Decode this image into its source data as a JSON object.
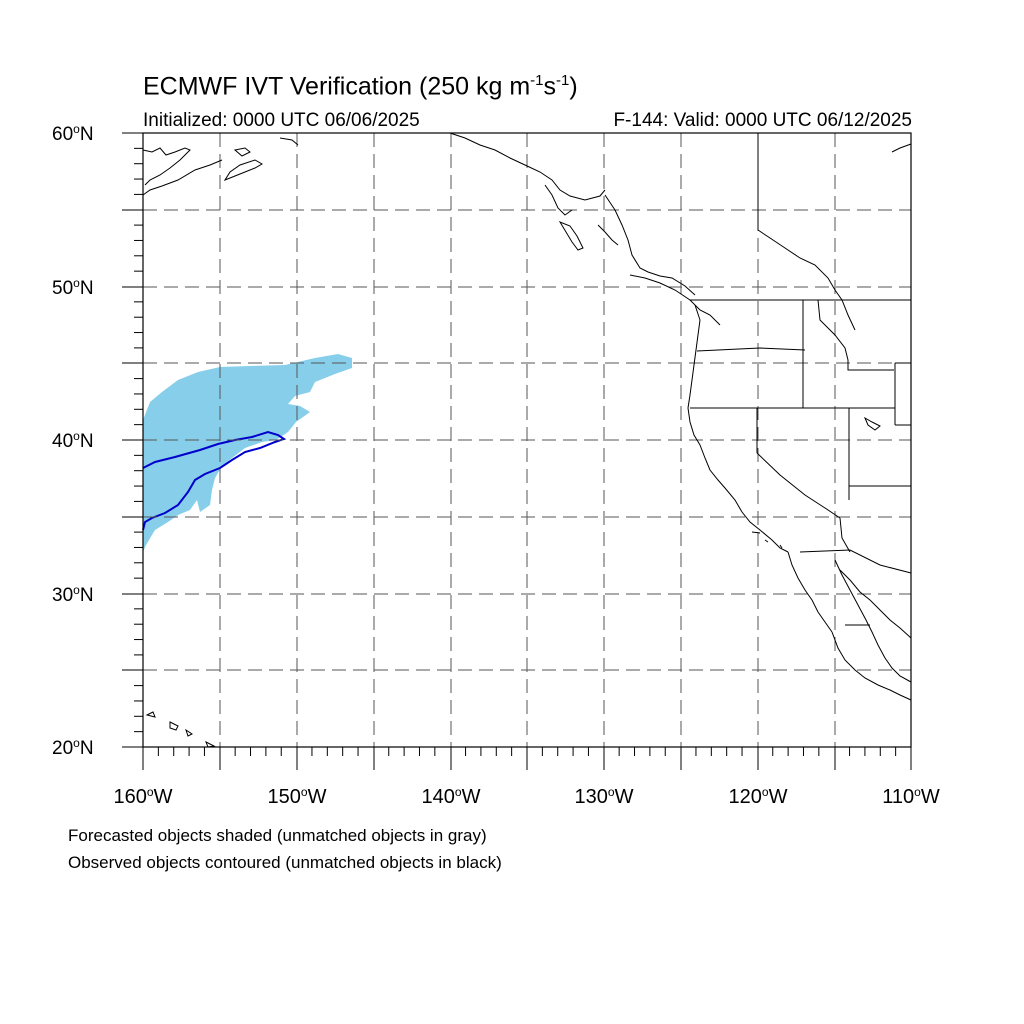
{
  "header": {
    "title_main": "ECMWF IVT Verification (250 kg m",
    "title_exp1": "-1",
    "title_mid": "s",
    "title_exp2": "-1",
    "title_end": ")",
    "initialized": "Initialized: 0000 UTC 06/06/2025",
    "valid": "F-144: Valid: 0000 UTC 06/12/2025"
  },
  "axes": {
    "lat_labels": [
      {
        "value": "60",
        "suffix": "N"
      },
      {
        "value": "50",
        "suffix": "N"
      },
      {
        "value": "40",
        "suffix": "N"
      },
      {
        "value": "30",
        "suffix": "N"
      },
      {
        "value": "20",
        "suffix": "N"
      }
    ],
    "lon_labels": [
      {
        "value": "160",
        "suffix": "W"
      },
      {
        "value": "150",
        "suffix": "W"
      },
      {
        "value": "140",
        "suffix": "W"
      },
      {
        "value": "130",
        "suffix": "W"
      },
      {
        "value": "120",
        "suffix": "W"
      },
      {
        "value": "110",
        "suffix": "W"
      }
    ],
    "lat_range": [
      20,
      60
    ],
    "lon_range": [
      -160,
      -110
    ],
    "grid": "dashed, every 5 degrees"
  },
  "legend": {
    "line1": "Forecasted objects shaded (unmatched objects in gray)",
    "line2": "Observed objects contoured (unmatched objects in black)"
  },
  "colors": {
    "forecast_fill": "#87CEEB",
    "observed_contour": "#0000CC",
    "coastline": "#000000",
    "grid": "#555555"
  }
}
